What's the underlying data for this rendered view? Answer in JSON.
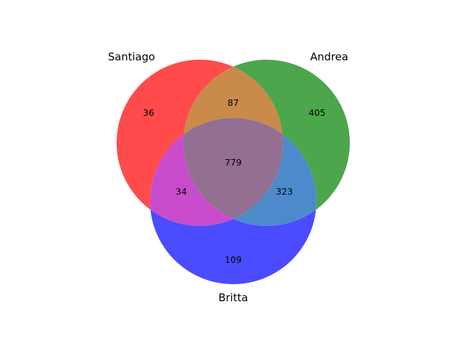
{
  "venn": {
    "sets": [
      {
        "key": "A",
        "name": "Santiago",
        "color": "#ff0000"
      },
      {
        "key": "B",
        "name": "Andrea",
        "color": "#008000"
      },
      {
        "key": "C",
        "name": "Britta",
        "color": "#0000ff"
      }
    ],
    "regions": [
      {
        "id": "A",
        "value": "36"
      },
      {
        "id": "AB",
        "value": "87"
      },
      {
        "id": "B",
        "value": "405"
      },
      {
        "id": "ABC",
        "value": "779"
      },
      {
        "id": "AC",
        "value": "34"
      },
      {
        "id": "BC",
        "value": "323"
      },
      {
        "id": "C",
        "value": "109"
      }
    ],
    "opacity": 0.7
  }
}
